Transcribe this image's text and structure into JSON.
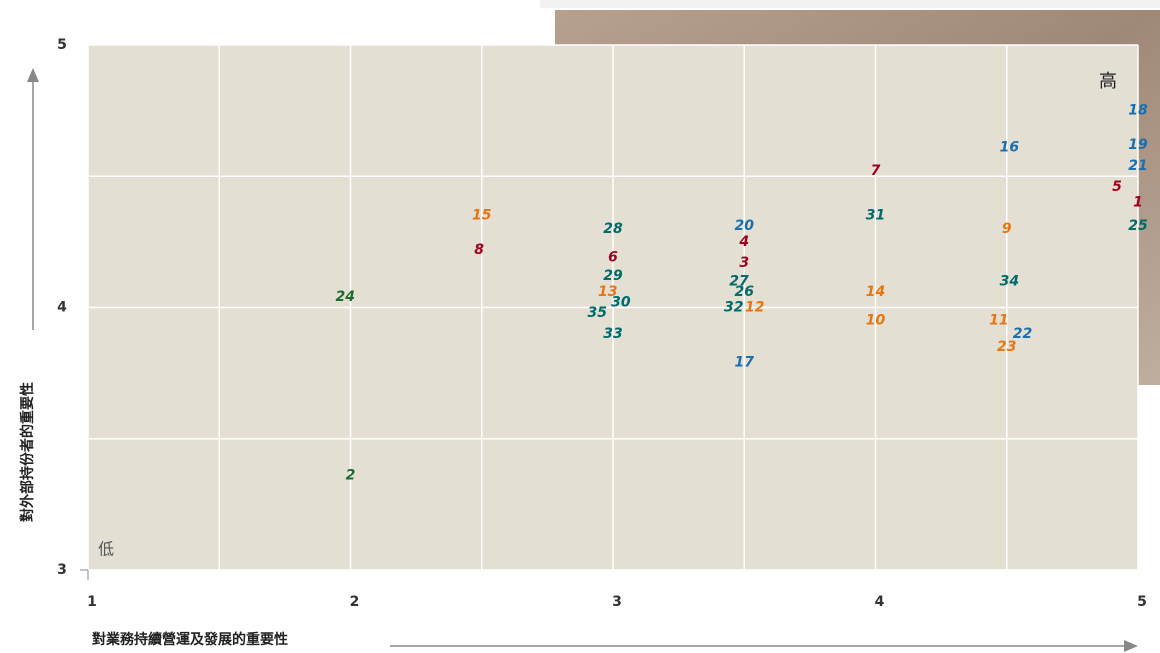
{
  "chart_data": {
    "type": "scatter",
    "y_label": "對外部持份者的重要性",
    "x_label": "對業務持續營運及發展的重要性",
    "high_label": "高",
    "low_label": "低",
    "xlim": [
      1,
      5
    ],
    "ylim": [
      3,
      5
    ],
    "xticks": [
      1,
      2,
      3,
      4,
      5
    ],
    "yticks": [
      3,
      4,
      5
    ],
    "grid": true,
    "points": [
      {
        "label": "18",
        "x": 5.0,
        "y": 4.75,
        "color": "#1a6fae"
      },
      {
        "label": "19",
        "x": 5.0,
        "y": 4.62,
        "color": "#1a6fae"
      },
      {
        "label": "21",
        "x": 5.0,
        "y": 4.54,
        "color": "#1a6fae"
      },
      {
        "label": "16",
        "x": 4.51,
        "y": 4.61,
        "color": "#1a6fae"
      },
      {
        "label": "7",
        "x": 4.0,
        "y": 4.52,
        "color": "#a0001e"
      },
      {
        "label": "5",
        "x": 4.92,
        "y": 4.46,
        "color": "#a0001e"
      },
      {
        "label": "1",
        "x": 5.0,
        "y": 4.4,
        "color": "#a0001e"
      },
      {
        "label": "15",
        "x": 2.5,
        "y": 4.35,
        "color": "#e87511"
      },
      {
        "label": "31",
        "x": 4.0,
        "y": 4.35,
        "color": "#006b6b"
      },
      {
        "label": "25",
        "x": 5.0,
        "y": 4.31,
        "color": "#006b6b"
      },
      {
        "label": "28",
        "x": 3.0,
        "y": 4.3,
        "color": "#006b6b"
      },
      {
        "label": "20",
        "x": 3.5,
        "y": 4.31,
        "color": "#1a6fae"
      },
      {
        "label": "9",
        "x": 4.5,
        "y": 4.3,
        "color": "#e87511"
      },
      {
        "label": "4",
        "x": 3.5,
        "y": 4.25,
        "color": "#a0001e"
      },
      {
        "label": "8",
        "x": 2.49,
        "y": 4.22,
        "color": "#a0001e"
      },
      {
        "label": "6",
        "x": 3.0,
        "y": 4.19,
        "color": "#a0001e"
      },
      {
        "label": "3",
        "x": 3.5,
        "y": 4.17,
        "color": "#a0001e"
      },
      {
        "label": "29",
        "x": 3.0,
        "y": 4.12,
        "color": "#006b6b"
      },
      {
        "label": "27",
        "x": 3.48,
        "y": 4.1,
        "color": "#006b6b"
      },
      {
        "label": "34",
        "x": 4.51,
        "y": 4.1,
        "color": "#006b6b"
      },
      {
        "label": "24",
        "x": 1.98,
        "y": 4.04,
        "color": "#1e6b2e"
      },
      {
        "label": "13",
        "x": 2.98,
        "y": 4.06,
        "color": "#e87511"
      },
      {
        "label": "26",
        "x": 3.5,
        "y": 4.06,
        "color": "#006b6b"
      },
      {
        "label": "14",
        "x": 4.0,
        "y": 4.06,
        "color": "#e87511"
      },
      {
        "label": "30",
        "x": 3.03,
        "y": 4.02,
        "color": "#006b6b"
      },
      {
        "label": "35",
        "x": 2.94,
        "y": 3.98,
        "color": "#006b6b"
      },
      {
        "label": "32",
        "x": 3.46,
        "y": 4.0,
        "color": "#006b6b"
      },
      {
        "label": "12",
        "x": 3.54,
        "y": 4.0,
        "color": "#e87511"
      },
      {
        "label": "10",
        "x": 4.0,
        "y": 3.95,
        "color": "#e87511"
      },
      {
        "label": "11",
        "x": 4.47,
        "y": 3.95,
        "color": "#e87511"
      },
      {
        "label": "22",
        "x": 4.56,
        "y": 3.9,
        "color": "#1a6fae"
      },
      {
        "label": "33",
        "x": 3.0,
        "y": 3.9,
        "color": "#006b6b"
      },
      {
        "label": "23",
        "x": 4.5,
        "y": 3.85,
        "color": "#e87511"
      },
      {
        "label": "17",
        "x": 3.5,
        "y": 3.79,
        "color": "#1a6fae"
      },
      {
        "label": "2",
        "x": 2.0,
        "y": 3.36,
        "color": "#1e6b2e"
      }
    ]
  }
}
